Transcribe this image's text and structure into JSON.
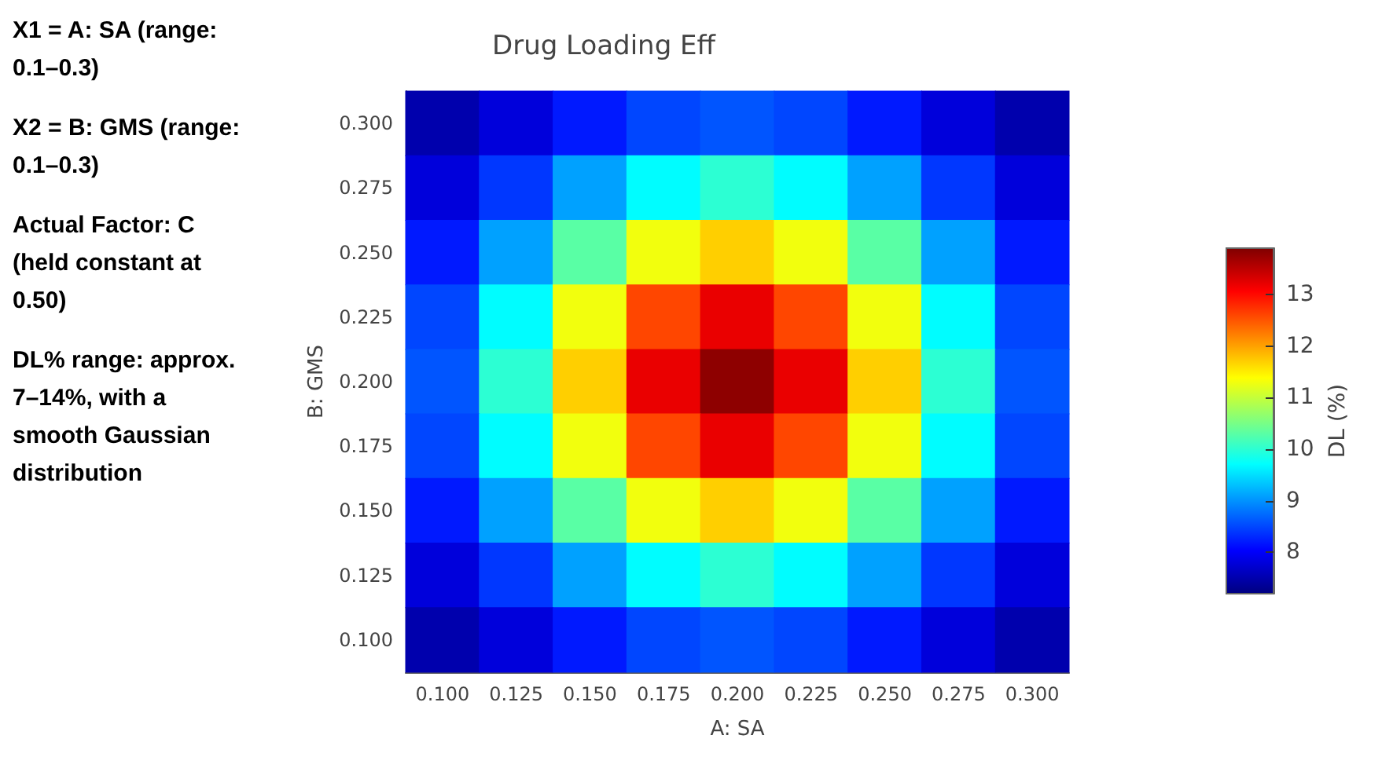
{
  "chart_data": {
    "type": "heatmap",
    "title": "Drug Loading Eff",
    "xlabel": "A: SA",
    "ylabel": "B: GMS",
    "clabel": "DL (%)",
    "categories": [
      "0.100",
      "0.125",
      "0.150",
      "0.175",
      "0.200",
      "0.225",
      "0.250",
      "0.275",
      "0.300"
    ],
    "y_categories": [
      "0.300",
      "0.275",
      "0.250",
      "0.225",
      "0.200",
      "0.175",
      "0.150",
      "0.125",
      "0.100"
    ],
    "cells": [
      [
        7.5,
        7.8,
        8.2,
        8.5,
        8.6,
        8.5,
        8.2,
        7.8,
        7.5
      ],
      [
        7.8,
        8.4,
        9.1,
        9.7,
        10.0,
        9.7,
        9.1,
        8.4,
        7.8
      ],
      [
        8.2,
        9.1,
        10.3,
        11.3,
        11.7,
        11.3,
        10.3,
        9.1,
        8.2
      ],
      [
        8.5,
        9.7,
        11.3,
        12.6,
        13.2,
        12.6,
        11.3,
        9.7,
        8.5
      ],
      [
        8.6,
        10.0,
        11.7,
        13.2,
        13.8,
        13.2,
        11.7,
        10.0,
        8.6
      ],
      [
        8.5,
        9.7,
        11.3,
        12.6,
        13.2,
        12.6,
        11.3,
        9.7,
        8.5
      ],
      [
        8.2,
        9.1,
        10.3,
        11.3,
        11.7,
        11.3,
        10.3,
        9.1,
        8.2
      ],
      [
        7.8,
        8.4,
        9.1,
        9.7,
        10.0,
        9.7,
        9.1,
        8.4,
        7.8
      ],
      [
        7.5,
        7.8,
        8.2,
        8.5,
        8.6,
        8.5,
        8.2,
        7.8,
        7.5
      ]
    ],
    "clim": [
      7.2,
      13.9
    ],
    "cticks": [
      8,
      9,
      10,
      11,
      12,
      13
    ],
    "annotations": [
      "X1 = A: SA (range: 0.1–0.3)",
      "X2 = B: GMS (range: 0.1–0.3)",
      "Actual Factor: C (held constant at 0.50)",
      "DL% range: approx. 7–14%, with a smooth Gaussian distribution"
    ]
  }
}
